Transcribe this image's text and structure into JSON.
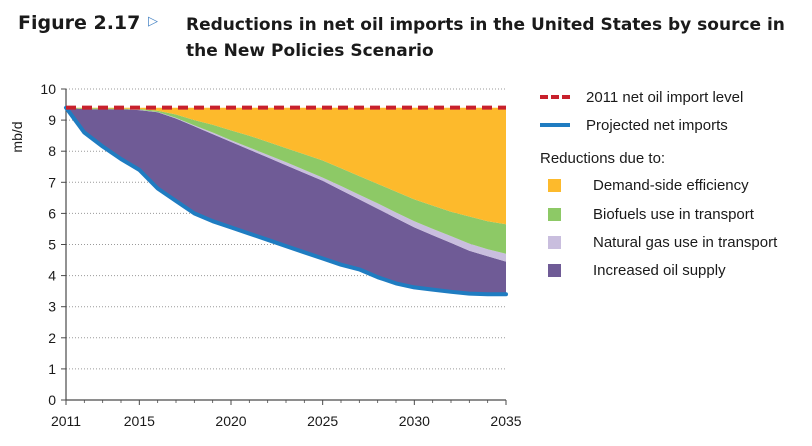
{
  "figure": {
    "number": "Figure 2.17",
    "marker": "▷",
    "title": "Reductions in net oil imports in the United States by source in the New Policies Scenario"
  },
  "legend": {
    "ref_line_label": "2011 net oil import level",
    "projected_label": "Projected net imports",
    "reductions_heading": "Reductions due to:",
    "items": [
      {
        "label": "Demand-side efficiency",
        "color": "#FDBA2C"
      },
      {
        "label": "Biofuels use in transport",
        "color": "#8DC966"
      },
      {
        "label": "Natural gas use in transport",
        "color": "#C9BEDE"
      },
      {
        "label": "Increased oil supply",
        "color": "#6F5B96"
      }
    ],
    "ref_line_color": "#C8202C",
    "projected_color": "#1F7CC1"
  },
  "chart_data": {
    "type": "area",
    "ylabel": "mb/d",
    "ylim": [
      0,
      10
    ],
    "yticks": [
      0,
      1,
      2,
      3,
      4,
      5,
      6,
      7,
      8,
      9,
      10
    ],
    "xlim": [
      2011,
      2035
    ],
    "xticks": [
      2011,
      2015,
      2020,
      2025,
      2030,
      2035
    ],
    "reference_level": 9.4,
    "x": [
      2011,
      2012,
      2013,
      2014,
      2015,
      2016,
      2017,
      2018,
      2019,
      2020,
      2021,
      2022,
      2023,
      2024,
      2025,
      2026,
      2027,
      2028,
      2029,
      2030,
      2031,
      2032,
      2033,
      2034,
      2035
    ],
    "projected_net_imports": [
      9.4,
      8.6,
      8.15,
      7.75,
      7.4,
      6.8,
      6.4,
      6.0,
      5.75,
      5.55,
      5.35,
      5.15,
      4.95,
      4.75,
      4.55,
      4.35,
      4.2,
      3.95,
      3.75,
      3.62,
      3.55,
      3.48,
      3.42,
      3.4,
      3.4
    ],
    "series": [
      {
        "name": "Increased oil supply",
        "upper": [
          9.4,
          9.35,
          9.35,
          9.35,
          9.32,
          9.25,
          9.05,
          8.8,
          8.55,
          8.3,
          8.05,
          7.8,
          7.55,
          7.3,
          7.05,
          6.75,
          6.45,
          6.15,
          5.85,
          5.55,
          5.3,
          5.05,
          4.8,
          4.62,
          4.45
        ]
      },
      {
        "name": "Natural gas use in transport",
        "upper": [
          9.4,
          9.35,
          9.35,
          9.35,
          9.33,
          9.26,
          9.07,
          8.83,
          8.6,
          8.35,
          8.12,
          7.88,
          7.65,
          7.4,
          7.15,
          6.88,
          6.6,
          6.32,
          6.03,
          5.75,
          5.5,
          5.27,
          5.03,
          4.85,
          4.7
        ]
      },
      {
        "name": "Biofuels use in transport",
        "upper": [
          9.4,
          9.38,
          9.38,
          9.37,
          9.36,
          9.3,
          9.18,
          9.0,
          8.85,
          8.67,
          8.5,
          8.3,
          8.1,
          7.9,
          7.7,
          7.45,
          7.2,
          6.95,
          6.7,
          6.45,
          6.25,
          6.05,
          5.9,
          5.75,
          5.65
        ]
      },
      {
        "name": "Demand-side efficiency",
        "upper": [
          9.4,
          9.4,
          9.4,
          9.4,
          9.4,
          9.4,
          9.4,
          9.4,
          9.4,
          9.4,
          9.4,
          9.4,
          9.4,
          9.4,
          9.4,
          9.4,
          9.4,
          9.4,
          9.4,
          9.4,
          9.4,
          9.4,
          9.4,
          9.4,
          9.4
        ]
      }
    ],
    "grid": true,
    "legend_position": "right"
  }
}
